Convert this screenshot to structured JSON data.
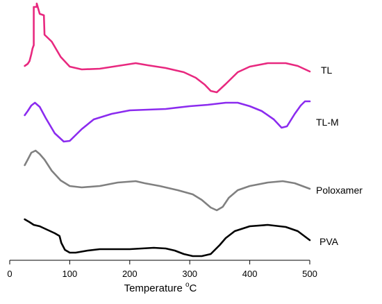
{
  "chart_data": {
    "type": "line",
    "xlabel": "Temperature",
    "xlabel_unit_sup": "o",
    "xlabel_unit": "C",
    "xlim": [
      0,
      500
    ],
    "x_ticks": [
      0,
      100,
      200,
      300,
      400,
      500
    ],
    "y_axis_shown": false,
    "grid": false,
    "legend": "inline labels at right end of each curve",
    "series": [
      {
        "name": "TL",
        "color": "#e8287f",
        "points": [
          [
            25,
            95
          ],
          [
            30,
            92
          ],
          [
            33,
            88
          ],
          [
            36,
            78
          ],
          [
            38,
            70
          ],
          [
            40,
            65
          ],
          [
            40,
            10
          ],
          [
            45,
            10
          ],
          [
            45,
            5
          ],
          [
            50,
            20
          ],
          [
            57,
            22
          ],
          [
            58,
            50
          ],
          [
            70,
            60
          ],
          [
            85,
            82
          ],
          [
            100,
            96
          ],
          [
            120,
            100
          ],
          [
            150,
            99
          ],
          [
            180,
            95
          ],
          [
            210,
            91
          ],
          [
            230,
            94
          ],
          [
            260,
            98
          ],
          [
            290,
            104
          ],
          [
            310,
            112
          ],
          [
            325,
            122
          ],
          [
            335,
            131
          ],
          [
            345,
            133
          ],
          [
            360,
            121
          ],
          [
            380,
            104
          ],
          [
            400,
            96
          ],
          [
            430,
            91
          ],
          [
            460,
            91
          ],
          [
            480,
            95
          ],
          [
            500,
            103
          ]
        ]
      },
      {
        "name": "TL-M",
        "color": "#8b2bef",
        "points": [
          [
            25,
            166
          ],
          [
            30,
            160
          ],
          [
            36,
            152
          ],
          [
            42,
            148
          ],
          [
            50,
            154
          ],
          [
            60,
            170
          ],
          [
            75,
            192
          ],
          [
            90,
            204
          ],
          [
            100,
            203
          ],
          [
            120,
            186
          ],
          [
            140,
            172
          ],
          [
            170,
            164
          ],
          [
            200,
            159
          ],
          [
            230,
            158
          ],
          [
            260,
            157
          ],
          [
            300,
            153
          ],
          [
            330,
            151
          ],
          [
            360,
            148
          ],
          [
            380,
            148
          ],
          [
            400,
            153
          ],
          [
            420,
            160
          ],
          [
            440,
            172
          ],
          [
            453,
            184
          ],
          [
            462,
            182
          ],
          [
            475,
            164
          ],
          [
            485,
            152
          ],
          [
            492,
            146
          ],
          [
            500,
            146
          ]
        ]
      },
      {
        "name": "Poloxamer",
        "color": "#808080",
        "points": [
          [
            25,
            238
          ],
          [
            30,
            230
          ],
          [
            36,
            220
          ],
          [
            43,
            217
          ],
          [
            50,
            222
          ],
          [
            58,
            230
          ],
          [
            70,
            246
          ],
          [
            85,
            260
          ],
          [
            100,
            268
          ],
          [
            120,
            270
          ],
          [
            150,
            268
          ],
          [
            180,
            263
          ],
          [
            210,
            261
          ],
          [
            225,
            264
          ],
          [
            250,
            268
          ],
          [
            280,
            274
          ],
          [
            305,
            280
          ],
          [
            320,
            288
          ],
          [
            335,
            299
          ],
          [
            345,
            303
          ],
          [
            355,
            298
          ],
          [
            365,
            285
          ],
          [
            380,
            274
          ],
          [
            400,
            268
          ],
          [
            430,
            263
          ],
          [
            455,
            261
          ],
          [
            475,
            264
          ],
          [
            500,
            272
          ]
        ]
      },
      {
        "name": "PVA",
        "color": "#000000",
        "points": [
          [
            25,
            316
          ],
          [
            33,
            320
          ],
          [
            40,
            324
          ],
          [
            50,
            326
          ],
          [
            60,
            330
          ],
          [
            75,
            336
          ],
          [
            83,
            340
          ],
          [
            86,
            350
          ],
          [
            92,
            360
          ],
          [
            100,
            364
          ],
          [
            110,
            364
          ],
          [
            130,
            361
          ],
          [
            150,
            359
          ],
          [
            200,
            359
          ],
          [
            240,
            357
          ],
          [
            260,
            358
          ],
          [
            275,
            361
          ],
          [
            290,
            366
          ],
          [
            305,
            369
          ],
          [
            320,
            369
          ],
          [
            335,
            366
          ],
          [
            350,
            353
          ],
          [
            360,
            343
          ],
          [
            375,
            333
          ],
          [
            400,
            326
          ],
          [
            430,
            324
          ],
          [
            460,
            327
          ],
          [
            480,
            333
          ],
          [
            500,
            346
          ]
        ]
      }
    ]
  }
}
